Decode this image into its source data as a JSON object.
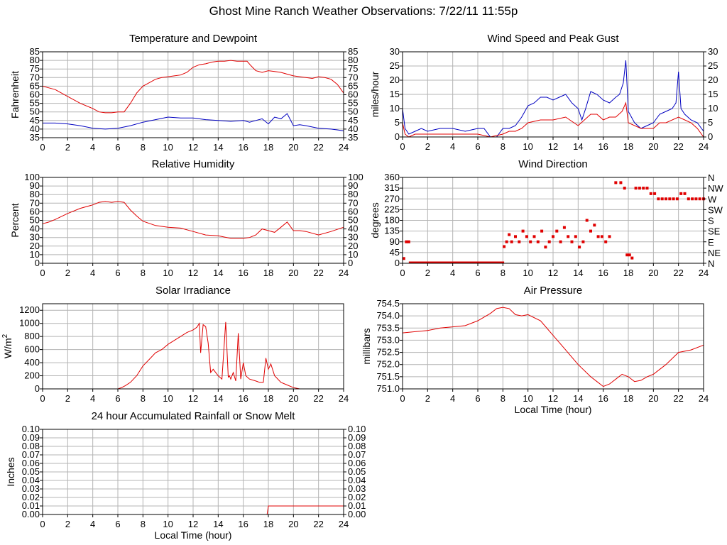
{
  "page_title": "Ghost Mine Ranch Weather Observations: 7/22/11 11:55p",
  "colors": {
    "red": "#e00000",
    "blue": "#0000c0",
    "grid": "#b4b4b4",
    "frame": "#000000"
  },
  "chart_data": [
    {
      "id": "temp",
      "type": "line",
      "title": "Temperature and Dewpoint",
      "ylabel": "Fahrenheit",
      "xlabel": "",
      "xlim": [
        0,
        24
      ],
      "ylim": [
        35,
        85
      ],
      "xticks": [
        0,
        2,
        4,
        6,
        8,
        10,
        12,
        14,
        16,
        18,
        20,
        22,
        24
      ],
      "yticks": [
        35,
        40,
        45,
        50,
        55,
        60,
        65,
        70,
        75,
        80,
        85
      ],
      "right_ticks": true,
      "grid": true,
      "series": [
        {
          "color": "red",
          "x": [
            0,
            0.5,
            1,
            2,
            3,
            4,
            4.5,
            5,
            5.5,
            6,
            6.5,
            7,
            7.5,
            8,
            8.5,
            9,
            9.5,
            10,
            10.5,
            11,
            11.5,
            12,
            12.5,
            13,
            13.5,
            14,
            14.5,
            15,
            15.5,
            16,
            16.3,
            16.6,
            17,
            17.5,
            18,
            18.5,
            19,
            19.5,
            20,
            20.5,
            21,
            21.5,
            22,
            22.5,
            23,
            23.5,
            24
          ],
          "y": [
            65,
            64,
            63,
            59,
            55,
            52,
            50,
            49.5,
            49.5,
            50,
            50,
            55,
            61,
            65,
            67,
            69,
            70,
            70.5,
            71,
            71.5,
            73,
            76,
            77.5,
            78,
            79,
            79.5,
            79.5,
            80,
            79.5,
            79.5,
            79.5,
            77,
            74,
            73,
            74,
            73.5,
            73,
            72,
            71,
            70.5,
            70,
            69.5,
            70.5,
            70,
            69,
            66,
            61
          ]
        },
        {
          "color": "blue",
          "x": [
            0,
            1,
            2,
            3,
            4,
            5,
            6,
            7,
            8,
            9,
            10,
            11,
            12,
            13,
            14,
            15,
            16,
            16.5,
            17,
            17.5,
            18,
            18.5,
            19,
            19.5,
            20,
            20.5,
            21,
            22,
            23,
            24
          ],
          "y": [
            43.5,
            43.5,
            43,
            42,
            40.5,
            40,
            40.5,
            42,
            44,
            45.5,
            47,
            46.5,
            46.5,
            45.5,
            45,
            44.5,
            45,
            44,
            45,
            46,
            43,
            47,
            46,
            49,
            42,
            42.5,
            42,
            40.5,
            40,
            39
          ]
        }
      ]
    },
    {
      "id": "wind",
      "type": "line",
      "title": "Wind Speed and Peak Gust",
      "ylabel": "miles/hour",
      "xlabel": "",
      "xlim": [
        0,
        24
      ],
      "ylim": [
        0,
        30
      ],
      "xticks": [
        0,
        2,
        4,
        6,
        8,
        10,
        12,
        14,
        16,
        18,
        20,
        22,
        24
      ],
      "yticks": [
        0,
        5,
        10,
        15,
        20,
        25,
        30
      ],
      "right_ticks": true,
      "grid": true,
      "series": [
        {
          "color": "blue",
          "x": [
            0,
            0.2,
            0.5,
            1,
            1.5,
            2,
            3,
            4,
            5,
            6,
            6.5,
            7,
            7.5,
            8,
            8.5,
            9,
            9.5,
            10,
            10.5,
            11,
            11.5,
            12,
            12.5,
            13,
            13.5,
            14,
            14.3,
            14.6,
            15,
            15.5,
            16,
            16.5,
            17,
            17.3,
            17.6,
            17.8,
            18,
            18.5,
            19,
            19.5,
            20,
            20.5,
            21,
            21.5,
            21.8,
            22,
            22.2,
            22.5,
            23,
            23.5,
            24
          ],
          "y": [
            10,
            3,
            1,
            2,
            3,
            2,
            3,
            3,
            2,
            3,
            3,
            0,
            0,
            3,
            3,
            4,
            7,
            11,
            12,
            14,
            14,
            13,
            14,
            15,
            12,
            10,
            6,
            10,
            16,
            15,
            13,
            12,
            14,
            15,
            19,
            27,
            9,
            5,
            3,
            4,
            5,
            8,
            9,
            10,
            12,
            23,
            10,
            8,
            6,
            5,
            2
          ]
        },
        {
          "color": "red",
          "x": [
            0,
            0.2,
            0.5,
            1,
            2,
            3,
            4,
            5,
            6,
            7,
            8,
            8.5,
            9,
            9.5,
            10,
            11,
            12,
            13,
            14,
            14.5,
            15,
            15.5,
            16,
            16.5,
            17,
            17.5,
            17.8,
            18,
            19,
            20,
            20.5,
            21,
            22,
            22.5,
            23,
            23.5,
            24
          ],
          "y": [
            5,
            1,
            0,
            1,
            1,
            1,
            1,
            1,
            1,
            0,
            1,
            2,
            2,
            3,
            5,
            6,
            6,
            7,
            4,
            6,
            8,
            8,
            6,
            7,
            7,
            9,
            12,
            5,
            3,
            3,
            5,
            5,
            7,
            6,
            5,
            3,
            0
          ]
        }
      ]
    },
    {
      "id": "rh",
      "type": "line",
      "title": "Relative Humidity",
      "ylabel": "Percent",
      "xlabel": "",
      "xlim": [
        0,
        24
      ],
      "ylim": [
        0,
        100
      ],
      "xticks": [
        0,
        2,
        4,
        6,
        8,
        10,
        12,
        14,
        16,
        18,
        20,
        22,
        24
      ],
      "yticks": [
        0,
        10,
        20,
        30,
        40,
        50,
        60,
        70,
        80,
        90,
        100
      ],
      "right_ticks": true,
      "grid": true,
      "series": [
        {
          "color": "red",
          "x": [
            0,
            0.5,
            1,
            2,
            3,
            4,
            4.5,
            5,
            5.5,
            6,
            6.5,
            7,
            7.5,
            8,
            9,
            10,
            11,
            12,
            13,
            14,
            15,
            16,
            16.5,
            17,
            17.5,
            18,
            18.5,
            19,
            19.5,
            20,
            20.5,
            21,
            22,
            23,
            24
          ],
          "y": [
            46,
            48,
            51,
            58,
            64,
            68,
            71,
            72,
            71,
            72,
            71,
            62,
            55,
            49,
            44,
            42,
            41,
            37,
            33,
            32,
            29,
            29,
            30,
            33,
            40,
            38,
            36,
            42,
            48,
            38,
            38,
            37,
            33,
            37,
            42
          ]
        }
      ]
    },
    {
      "id": "winddir",
      "type": "scatter",
      "title": "Wind Direction",
      "ylabel": "degrees",
      "xlabel": "",
      "xlim": [
        0,
        24
      ],
      "ylim": [
        0,
        360
      ],
      "xticks": [
        0,
        2,
        4,
        6,
        8,
        10,
        12,
        14,
        16,
        18,
        20,
        22,
        24
      ],
      "yticks": [
        0,
        45,
        90,
        135,
        180,
        225,
        270,
        315,
        360
      ],
      "right_labels": [
        "N",
        "NE",
        "E",
        "SE",
        "S",
        "SW",
        "W",
        "NW",
        "N"
      ],
      "grid": true,
      "series": [
        {
          "color": "red",
          "x": [
            0.1,
            0.3,
            0.5,
            8.1,
            8.3,
            8.5,
            8.7,
            9.0,
            9.3,
            9.6,
            9.9,
            10.2,
            10.5,
            10.8,
            11.1,
            11.4,
            11.7,
            12.0,
            12.3,
            12.6,
            12.9,
            13.2,
            13.5,
            13.8,
            14.1,
            14.4,
            14.7,
            15.0,
            15.3,
            15.6,
            15.9,
            16.2,
            16.5,
            17.0,
            17.4,
            17.7,
            17.9,
            18.1,
            18.3,
            18.6,
            18.9,
            19.2,
            19.5,
            19.8,
            20.1,
            20.4,
            20.7,
            21.0,
            21.3,
            21.6,
            21.9,
            22.2,
            22.5,
            22.8,
            23.1,
            23.4,
            23.7,
            24.0
          ],
          "y": [
            20,
            90,
            90,
            70,
            90,
            120,
            90,
            112,
            90,
            135,
            112,
            90,
            112,
            90,
            135,
            68,
            90,
            112,
            135,
            90,
            150,
            112,
            90,
            112,
            68,
            90,
            180,
            135,
            160,
            112,
            112,
            90,
            112,
            338,
            338,
            315,
            35,
            35,
            22,
            315,
            315,
            315,
            315,
            292,
            292,
            270,
            270,
            270,
            270,
            270,
            270,
            292,
            292,
            270,
            270,
            270,
            270,
            270
          ]
        }
      ]
    },
    {
      "id": "solar",
      "type": "line",
      "title": "Solar Irradiance",
      "ylabel": "W/m",
      "ylabel_sup": "2",
      "xlabel": "",
      "xlim": [
        0,
        24
      ],
      "ylim": [
        0,
        1300
      ],
      "xticks": [
        0,
        2,
        4,
        6,
        8,
        10,
        12,
        14,
        16,
        18,
        20,
        22,
        24
      ],
      "yticks": [
        0,
        200,
        400,
        600,
        800,
        1000,
        1200
      ],
      "right_ticks": false,
      "grid": true,
      "series": [
        {
          "color": "red",
          "x": [
            0,
            6,
            6.3,
            6.6,
            7,
            7.5,
            8,
            8.5,
            9,
            9.5,
            10,
            10.5,
            11,
            11.5,
            12,
            12.3,
            12.5,
            12.6,
            12.8,
            13,
            13.2,
            13.4,
            13.6,
            14,
            14.3,
            14.6,
            14.8,
            14.9,
            15,
            15.2,
            15.4,
            15.6,
            15.8,
            16,
            16.2,
            16.5,
            17,
            17.3,
            17.6,
            17.8,
            18,
            18.2,
            18.5,
            19,
            19.5,
            20,
            20.5,
            24
          ],
          "y": [
            0,
            0,
            20,
            50,
            100,
            200,
            350,
            450,
            550,
            600,
            680,
            740,
            800,
            860,
            900,
            940,
            1000,
            550,
            980,
            950,
            700,
            250,
            300,
            200,
            150,
            1020,
            180,
            200,
            150,
            250,
            120,
            850,
            150,
            400,
            200,
            150,
            120,
            100,
            100,
            470,
            300,
            380,
            200,
            100,
            60,
            20,
            0,
            0
          ]
        }
      ]
    },
    {
      "id": "pressure",
      "type": "line",
      "title": "Air Pressure",
      "ylabel": "millibars",
      "xlabel": "Local Time (hour)",
      "xlim": [
        0,
        24
      ],
      "ylim": [
        751.0,
        754.5
      ],
      "xticks": [
        0,
        2,
        4,
        6,
        8,
        10,
        12,
        14,
        16,
        18,
        20,
        22,
        24
      ],
      "yticks": [
        751.0,
        751.5,
        752.0,
        752.5,
        753.0,
        753.5,
        754.0,
        754.5
      ],
      "ytick_labels": [
        "751.0",
        "751.5",
        "752.0",
        "752.5",
        "753.0",
        "753.5",
        "754.0",
        "754.5"
      ],
      "right_ticks": false,
      "grid": true,
      "series": [
        {
          "color": "red",
          "x": [
            0,
            1,
            2,
            3,
            4,
            5,
            6,
            7,
            7.5,
            8,
            8.5,
            9,
            9.5,
            10,
            11,
            12,
            13,
            14,
            15,
            15.5,
            16,
            16.5,
            17,
            17.5,
            18,
            18.5,
            19,
            19.5,
            20,
            21,
            22,
            23,
            24
          ],
          "y": [
            753.3,
            753.35,
            753.4,
            753.5,
            753.55,
            753.6,
            753.8,
            754.1,
            754.3,
            754.35,
            754.3,
            754.05,
            754.0,
            754.05,
            753.8,
            753.2,
            752.6,
            752.0,
            751.5,
            751.3,
            751.1,
            751.2,
            751.4,
            751.6,
            751.5,
            751.3,
            751.35,
            751.5,
            751.6,
            752.0,
            752.5,
            752.6,
            752.8
          ]
        }
      ]
    },
    {
      "id": "rain",
      "type": "line",
      "title": "24 hour Accumulated Rainfall or Snow Melt",
      "ylabel": "Inches",
      "xlabel": "Local Time (hour)",
      "xlim": [
        0,
        24
      ],
      "ylim": [
        0,
        0.1
      ],
      "xticks": [
        0,
        2,
        4,
        6,
        8,
        10,
        12,
        14,
        16,
        18,
        20,
        22,
        24
      ],
      "yticks": [
        0,
        0.01,
        0.02,
        0.03,
        0.04,
        0.05,
        0.06,
        0.07,
        0.08,
        0.09,
        0.1
      ],
      "ytick_labels": [
        "0.00",
        "0.01",
        "0.02",
        "0.03",
        "0.04",
        "0.05",
        "0.06",
        "0.07",
        "0.08",
        "0.09",
        "0.10"
      ],
      "right_ticks": true,
      "grid": true,
      "series": [
        {
          "color": "red",
          "x": [
            0,
            17.9,
            18.0,
            24
          ],
          "y": [
            0,
            0,
            0.01,
            0.01
          ]
        }
      ]
    }
  ]
}
